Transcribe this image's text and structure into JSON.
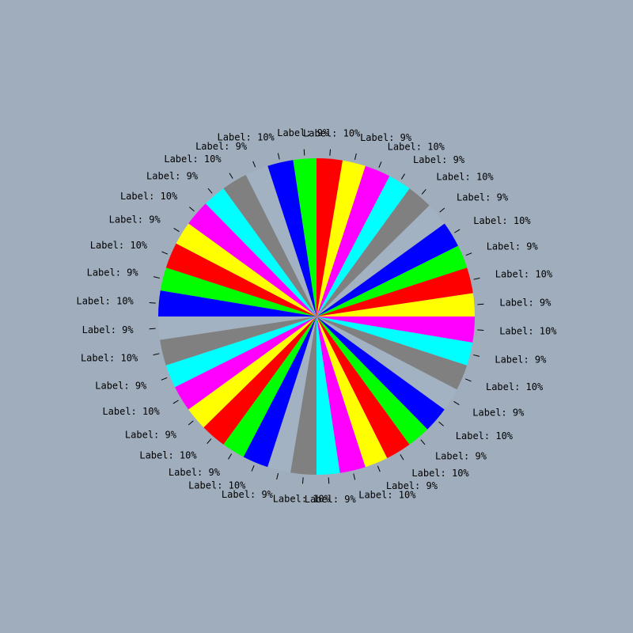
{
  "background": "#9fadbd",
  "chart_data": {
    "type": "pie",
    "title": "",
    "start_angle_deg": 0,
    "direction": "counterclockwise",
    "labels_outside": true,
    "color_cycle": [
      "#ffff00",
      "#ff0000",
      "#00ff00",
      "#0000ff",
      "#a3b2c2",
      "#808080",
      "#00ffff",
      "#ff00ff"
    ],
    "slices": [
      {
        "label": "Label: 9%",
        "value": 9
      },
      {
        "label": "Label: 10%",
        "value": 10
      },
      {
        "label": "Label: 9%",
        "value": 9
      },
      {
        "label": "Label: 10%",
        "value": 10
      },
      {
        "label": "Label: 9%",
        "value": 9
      },
      {
        "label": "Label: 10%",
        "value": 10
      },
      {
        "label": "Label: 9%",
        "value": 9
      },
      {
        "label": "Label: 10%",
        "value": 10
      },
      {
        "label": "Label: 9%",
        "value": 9
      },
      {
        "label": "Label: 10%",
        "value": 10
      },
      {
        "label": "Label: 9%",
        "value": 9
      },
      {
        "label": "Label: 10%",
        "value": 10
      },
      {
        "label": "Label: 9%",
        "value": 9
      },
      {
        "label": "Label: 10%",
        "value": 10
      },
      {
        "label": "Label: 9%",
        "value": 9
      },
      {
        "label": "Label: 10%",
        "value": 10
      },
      {
        "label": "Label: 9%",
        "value": 9
      },
      {
        "label": "Label: 10%",
        "value": 10
      },
      {
        "label": "Label: 9%",
        "value": 9
      },
      {
        "label": "Label: 10%",
        "value": 10
      },
      {
        "label": "Label: 9%",
        "value": 9
      },
      {
        "label": "Label: 10%",
        "value": 10
      },
      {
        "label": "Label: 9%",
        "value": 9
      },
      {
        "label": "Label: 10%",
        "value": 10
      },
      {
        "label": "Label: 9%",
        "value": 9
      },
      {
        "label": "Label: 10%",
        "value": 10
      },
      {
        "label": "Label: 9%",
        "value": 9
      },
      {
        "label": "Label: 10%",
        "value": 10
      },
      {
        "label": "Label: 9%",
        "value": 9
      },
      {
        "label": "Label: 10%",
        "value": 10
      },
      {
        "label": "Label: 9%",
        "value": 9
      },
      {
        "label": "Label: 10%",
        "value": 10
      },
      {
        "label": "Label: 9%",
        "value": 9
      },
      {
        "label": "Label: 10%",
        "value": 10
      },
      {
        "label": "Label: 9%",
        "value": 9
      },
      {
        "label": "Label: 10%",
        "value": 10
      },
      {
        "label": "Label: 9%",
        "value": 9
      },
      {
        "label": "Label: 10%",
        "value": 10
      },
      {
        "label": "Label: 9%",
        "value": 9
      },
      {
        "label": "Label: 10%",
        "value": 10
      }
    ]
  }
}
